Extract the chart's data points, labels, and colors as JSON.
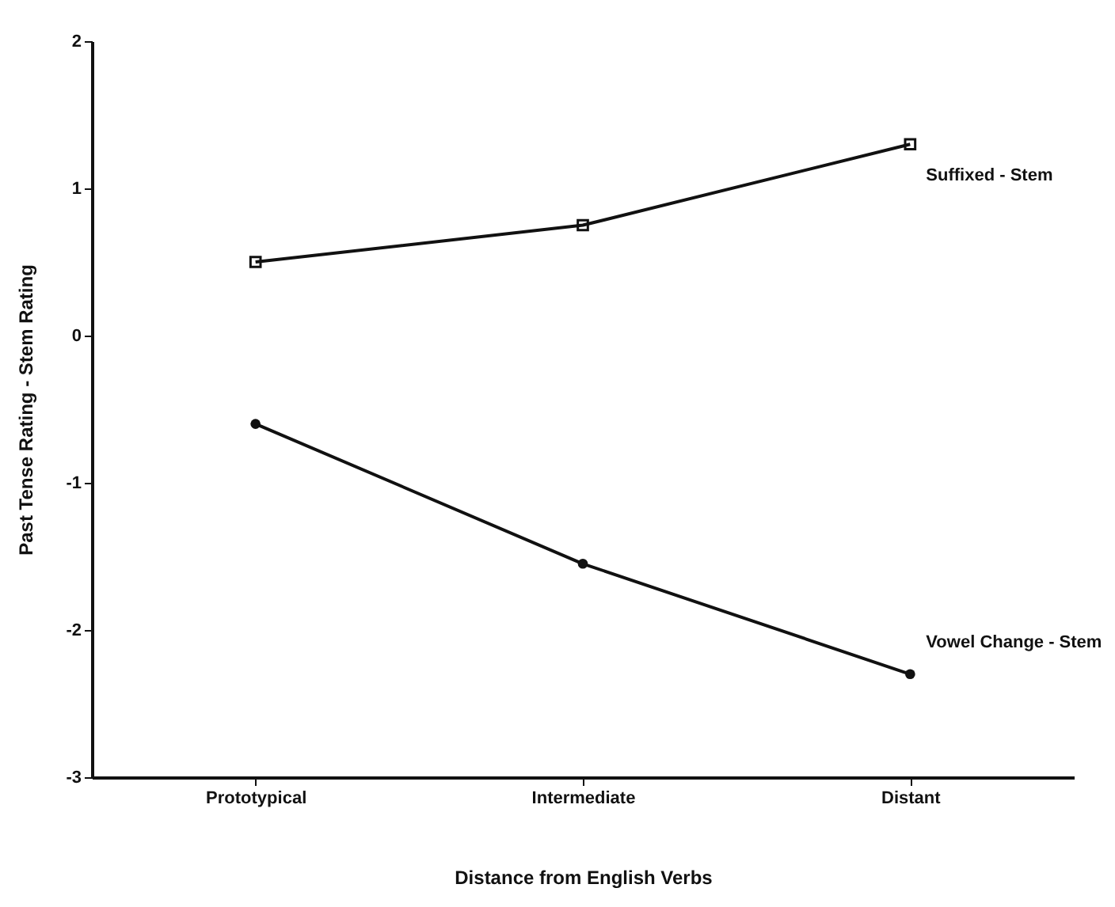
{
  "chart_data": {
    "type": "line",
    "xlabel": "Distance from English Verbs",
    "ylabel": "Past Tense Rating - Stem Rating",
    "categories": [
      "Prototypical",
      "Intermediate",
      "Distant"
    ],
    "series": [
      {
        "name": "Suffixed - Stem",
        "color": "#111111",
        "marker": "square",
        "values": [
          0.5,
          0.75,
          1.3
        ]
      },
      {
        "name": "Vowel Change - Stem",
        "color": "#111111",
        "marker": "circle",
        "values": [
          -0.6,
          -1.55,
          -2.3
        ]
      }
    ],
    "ylim": [
      -3,
      2
    ],
    "yticks": [
      -3,
      -2,
      -1,
      0,
      1,
      2
    ],
    "grid": false,
    "line_style": "solid"
  }
}
